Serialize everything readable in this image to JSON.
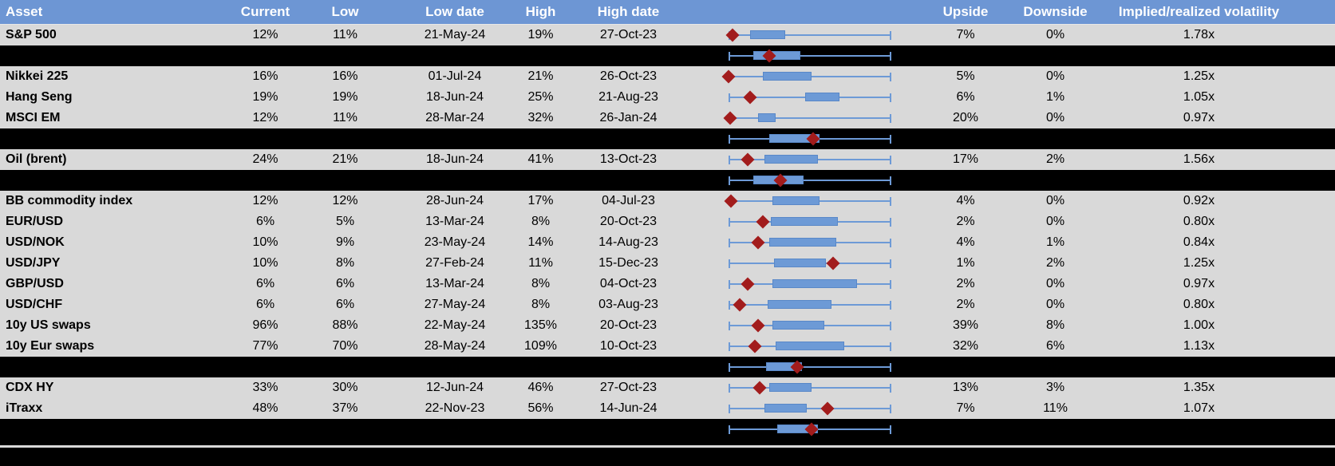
{
  "header": {
    "labels": [
      "Asset",
      "Current",
      "Low",
      "Low date",
      "High",
      "High date",
      "",
      "Upside",
      "Downside",
      "Implied/realized volatility",
      ""
    ]
  },
  "colors": {
    "header_bg": "#6D96D4",
    "header_text": "#FFFFFF",
    "row_bg": "#D9D9D9",
    "row_text": "#000000",
    "separator_bg": "#000000",
    "box_fill": "#6D9AD6",
    "box_border": "#5988C8",
    "whisker": "#6D9AD6",
    "marker": "#A21C1C",
    "footer_divider": "#D9D9D9"
  },
  "chart_data": {
    "type": "table",
    "title": "Implied volatility overview with normalized low-high range boxplots per asset",
    "columns": [
      "Asset",
      "Current",
      "Low",
      "Low date",
      "High",
      "High date",
      "Range plot",
      "Upside",
      "Downside",
      "Implied/realized volatility"
    ],
    "plot_legend": "whisker = low-to-high range (0-100 normalized), box = middle range band, red diamond = current level",
    "rows": [
      {
        "kind": "asset",
        "asset": "S&P 500",
        "current": "12%",
        "low": "11%",
        "low_date": "21-May-24",
        "high": "19%",
        "high_date": "27-Oct-23",
        "upside": "7%",
        "downside": "0%",
        "implied_realized": "1.78x",
        "plot": {
          "whisker_lo": 0,
          "whisker_hi": 100,
          "box_lo": 13,
          "box_hi": 35,
          "marker": 2.5
        }
      },
      {
        "kind": "separator",
        "plot": {
          "whisker_lo": 0,
          "whisker_hi": 100,
          "box_lo": 15,
          "box_hi": 44,
          "marker": 25
        }
      },
      {
        "kind": "asset",
        "asset": "Nikkei 225",
        "current": "16%",
        "low": "16%",
        "low_date": "01-Jul-24",
        "high": "21%",
        "high_date": "26-Oct-23",
        "upside": "5%",
        "downside": "0%",
        "implied_realized": "1.25x",
        "plot": {
          "whisker_lo": 0,
          "whisker_hi": 100,
          "box_lo": 21,
          "box_hi": 51,
          "marker": 0
        }
      },
      {
        "kind": "asset",
        "asset": "Hang Seng",
        "current": "19%",
        "low": "19%",
        "low_date": "18-Jun-24",
        "high": "25%",
        "high_date": "21-Aug-23",
        "upside": "6%",
        "downside": "1%",
        "implied_realized": "1.05x",
        "plot": {
          "whisker_lo": 0,
          "whisker_hi": 100,
          "box_lo": 47,
          "box_hi": 68,
          "marker": 13
        }
      },
      {
        "kind": "asset",
        "asset": "MSCI EM",
        "current": "12%",
        "low": "11%",
        "low_date": "28-Mar-24",
        "high": "32%",
        "high_date": "26-Jan-24",
        "upside": "20%",
        "downside": "0%",
        "implied_realized": "0.97x",
        "plot": {
          "whisker_lo": 0,
          "whisker_hi": 100,
          "box_lo": 18,
          "box_hi": 29,
          "marker": 1
        }
      },
      {
        "kind": "separator",
        "plot": {
          "whisker_lo": 0,
          "whisker_hi": 100,
          "box_lo": 25,
          "box_hi": 56,
          "marker": 52
        }
      },
      {
        "kind": "asset",
        "asset": "Oil (brent)",
        "current": "24%",
        "low": "21%",
        "low_date": "18-Jun-24",
        "high": "41%",
        "high_date": "13-Oct-23",
        "upside": "17%",
        "downside": "2%",
        "implied_realized": "1.56x",
        "plot": {
          "whisker_lo": 0,
          "whisker_hi": 100,
          "box_lo": 22,
          "box_hi": 55,
          "marker": 12
        }
      },
      {
        "kind": "separator",
        "plot": {
          "whisker_lo": 0,
          "whisker_hi": 100,
          "box_lo": 15,
          "box_hi": 46,
          "marker": 32
        }
      },
      {
        "kind": "asset",
        "asset": "BB commodity index",
        "current": "12%",
        "low": "12%",
        "low_date": "28-Jun-24",
        "high": "17%",
        "high_date": "04-Jul-23",
        "upside": "4%",
        "downside": "0%",
        "implied_realized": "0.92x",
        "plot": {
          "whisker_lo": 0,
          "whisker_hi": 100,
          "box_lo": 27,
          "box_hi": 56,
          "marker": 1.5
        }
      },
      {
        "kind": "asset",
        "asset": "EUR/USD",
        "current": "6%",
        "low": "5%",
        "low_date": "13-Mar-24",
        "high": "8%",
        "high_date": "20-Oct-23",
        "upside": "2%",
        "downside": "0%",
        "implied_realized": "0.80x",
        "plot": {
          "whisker_lo": 0,
          "whisker_hi": 100,
          "box_lo": 26,
          "box_hi": 67,
          "marker": 21
        }
      },
      {
        "kind": "asset",
        "asset": "USD/NOK",
        "current": "10%",
        "low": "9%",
        "low_date": "23-May-24",
        "high": "14%",
        "high_date": "14-Aug-23",
        "upside": "4%",
        "downside": "1%",
        "implied_realized": "0.84x",
        "plot": {
          "whisker_lo": 0,
          "whisker_hi": 100,
          "box_lo": 25,
          "box_hi": 66,
          "marker": 18
        }
      },
      {
        "kind": "asset",
        "asset": "USD/JPY",
        "current": "10%",
        "low": "8%",
        "low_date": "27-Feb-24",
        "high": "11%",
        "high_date": "15-Dec-23",
        "upside": "1%",
        "downside": "2%",
        "implied_realized": "1.25x",
        "plot": {
          "whisker_lo": 0,
          "whisker_hi": 100,
          "box_lo": 28,
          "box_hi": 60,
          "marker": 64
        }
      },
      {
        "kind": "asset",
        "asset": "GBP/USD",
        "current": "6%",
        "low": "6%",
        "low_date": "13-Mar-24",
        "high": "8%",
        "high_date": "04-Oct-23",
        "upside": "2%",
        "downside": "0%",
        "implied_realized": "0.97x",
        "plot": {
          "whisker_lo": 0,
          "whisker_hi": 100,
          "box_lo": 27,
          "box_hi": 79,
          "marker": 12
        }
      },
      {
        "kind": "asset",
        "asset": "USD/CHF",
        "current": "6%",
        "low": "6%",
        "low_date": "27-May-24",
        "high": "8%",
        "high_date": "03-Aug-23",
        "upside": "2%",
        "downside": "0%",
        "implied_realized": "0.80x",
        "plot": {
          "whisker_lo": 0,
          "whisker_hi": 100,
          "box_lo": 24,
          "box_hi": 63,
          "marker": 7
        }
      },
      {
        "kind": "asset",
        "asset": "10y US swaps",
        "current": "96%",
        "low": "88%",
        "low_date": "22-May-24",
        "high": "135%",
        "high_date": "20-Oct-23",
        "upside": "39%",
        "downside": "8%",
        "implied_realized": "1.00x",
        "plot": {
          "whisker_lo": 0,
          "whisker_hi": 100,
          "box_lo": 27,
          "box_hi": 59,
          "marker": 18
        }
      },
      {
        "kind": "asset",
        "asset": "10y Eur swaps",
        "current": "77%",
        "low": "70%",
        "low_date": "28-May-24",
        "high": "109%",
        "high_date": "10-Oct-23",
        "upside": "32%",
        "downside": "6%",
        "implied_realized": "1.13x",
        "plot": {
          "whisker_lo": 0,
          "whisker_hi": 100,
          "box_lo": 29,
          "box_hi": 71,
          "marker": 16
        }
      },
      {
        "kind": "separator",
        "plot": {
          "whisker_lo": 0,
          "whisker_hi": 100,
          "box_lo": 23,
          "box_hi": 45,
          "marker": 42
        }
      },
      {
        "kind": "asset",
        "asset": "CDX HY",
        "current": "33%",
        "low": "30%",
        "low_date": "12-Jun-24",
        "high": "46%",
        "high_date": "27-Oct-23",
        "upside": "13%",
        "downside": "3%",
        "implied_realized": "1.35x",
        "plot": {
          "whisker_lo": 0,
          "whisker_hi": 100,
          "box_lo": 25,
          "box_hi": 51,
          "marker": 19
        }
      },
      {
        "kind": "asset",
        "asset": "iTraxx",
        "current": "48%",
        "low": "37%",
        "low_date": "22-Nov-23",
        "high": "56%",
        "high_date": "14-Jun-24",
        "upside": "7%",
        "downside": "11%",
        "implied_realized": "1.07x",
        "plot": {
          "whisker_lo": 0,
          "whisker_hi": 100,
          "box_lo": 22,
          "box_hi": 48,
          "marker": 61
        }
      },
      {
        "kind": "separator",
        "plot": {
          "whisker_lo": 0,
          "whisker_hi": 100,
          "box_lo": 30,
          "box_hi": 55,
          "marker": 51
        }
      }
    ]
  }
}
